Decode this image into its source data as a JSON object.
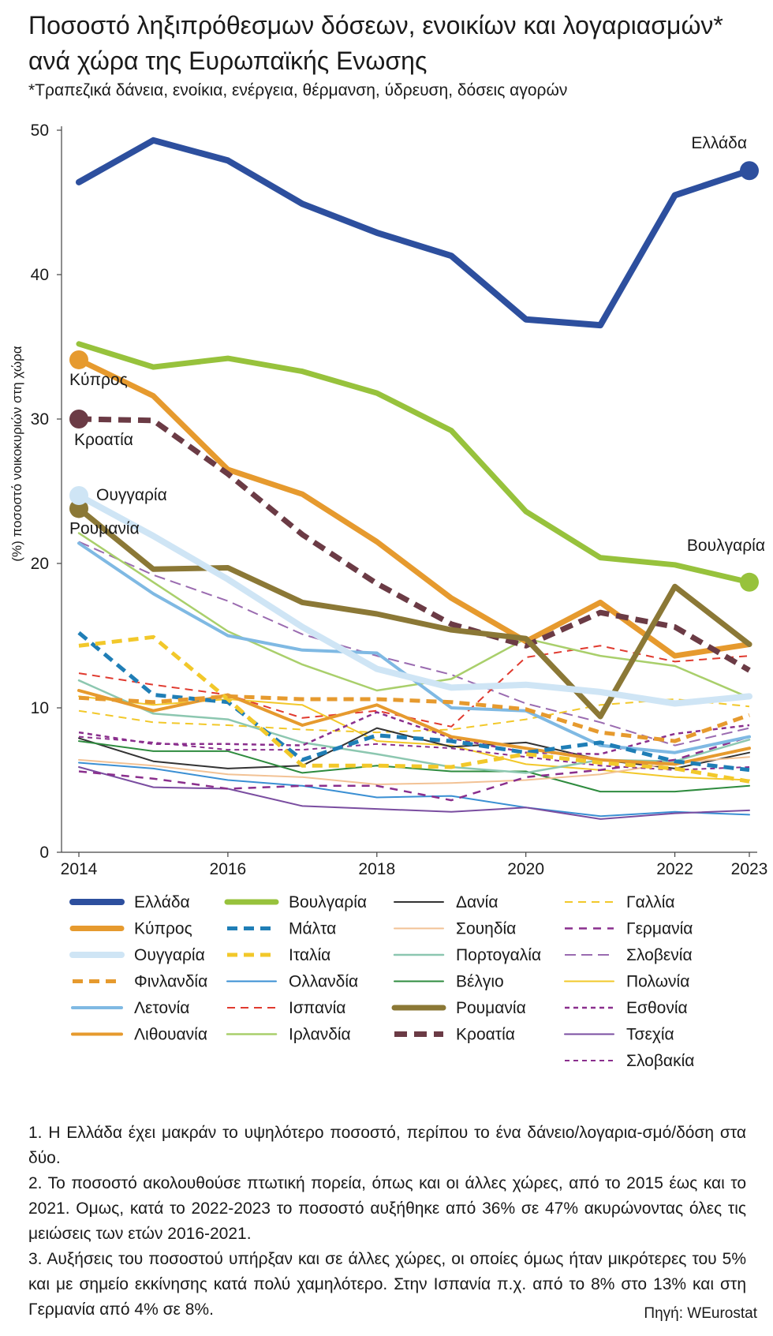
{
  "header": {
    "title": "Ποσοστό ληξιπρόθεσμων δόσεων, ενοικίων και λογαριασμών* ανά χώρα της Ευρωπαϊκής Ενωσης",
    "subtitle": "*Τραπεζικά δάνεια, ενοίκια, ενέργεια, θέρμανση, ύδρευση, δόσεις αγορών"
  },
  "chart_data": {
    "type": "line",
    "title": "Ποσοστό ληξιπρόθεσμων δόσεων, ενοικίων και λογαριασμών* ανά χώρα της Ευρωπαϊκής Ενωσης",
    "ylabel": "(%) ποσοστό νοικοκυριών στη χώρα",
    "xlabel": "",
    "x": [
      2014,
      2015,
      2016,
      2017,
      2018,
      2019,
      2020,
      2021,
      2022,
      2023
    ],
    "xticks": [
      "2014",
      "2016",
      "2018",
      "2020",
      "2022",
      "2023"
    ],
    "xtick_values": [
      2014,
      2016,
      2018,
      2020,
      2022,
      2023
    ],
    "yticks": [
      "0",
      "10",
      "20",
      "30",
      "40",
      "50"
    ],
    "ylim": [
      0,
      50
    ],
    "grid": false,
    "legend": "bottom",
    "series": [
      {
        "name": "Ελλάδα",
        "color": "#2d4f9e",
        "width": 8,
        "dash": "",
        "end_dot": true,
        "values": [
          46.4,
          49.3,
          47.9,
          44.9,
          42.9,
          41.3,
          36.9,
          36.5,
          45.5,
          47.2
        ]
      },
      {
        "name": "Βουλγαρία",
        "color": "#97c23c",
        "width": 7,
        "dash": "",
        "end_dot": true,
        "values": [
          35.2,
          33.6,
          34.2,
          33.3,
          31.8,
          29.2,
          23.6,
          20.4,
          19.9,
          18.7
        ]
      },
      {
        "name": "Κύπρος",
        "color": "#e69a2e",
        "width": 7,
        "dash": "",
        "start_dot": true,
        "values": [
          34.1,
          31.6,
          26.5,
          24.8,
          21.5,
          17.6,
          14.6,
          17.3,
          13.6,
          14.4
        ]
      },
      {
        "name": "Κροατία",
        "color": "#6b3b45",
        "width": 7,
        "dash": "16,9",
        "start_dot": true,
        "values": [
          30.0,
          29.9,
          26.2,
          22.0,
          18.6,
          15.8,
          14.3,
          16.6,
          15.6,
          12.6
        ]
      },
      {
        "name": "Ουγγαρία",
        "color": "#cfe5f5",
        "width": 8,
        "dash": "",
        "start_dot": true,
        "values": [
          24.7,
          21.9,
          18.9,
          15.6,
          12.7,
          11.4,
          11.6,
          11.1,
          10.3,
          10.8
        ]
      },
      {
        "name": "Ρουμανία",
        "color": "#8b7836",
        "width": 7,
        "dash": "",
        "start_dot": true,
        "values": [
          23.8,
          19.6,
          19.7,
          17.3,
          16.5,
          15.4,
          14.8,
          9.4,
          18.4,
          14.4
        ]
      },
      {
        "name": "Ιρλανδία",
        "color": "#a9cf6b",
        "width": 2.5,
        "dash": "",
        "values": [
          22.1,
          18.7,
          15.3,
          13.0,
          11.2,
          12.0,
          14.8,
          13.6,
          12.9,
          10.7
        ]
      },
      {
        "name": "Λετονία",
        "color": "#7fb9e3",
        "width": 4,
        "dash": "",
        "values": [
          21.4,
          17.9,
          15.0,
          14.0,
          13.8,
          10.0,
          9.8,
          7.4,
          6.9,
          8.0
        ]
      },
      {
        "name": "Σλοβενία",
        "color": "#9a6bb0",
        "width": 2,
        "dash": "14,7",
        "values": [
          21.5,
          19.2,
          17.4,
          15.1,
          13.6,
          12.3,
          10.3,
          9.0,
          7.4,
          8.6
        ]
      },
      {
        "name": "Μάλτα",
        "color": "#1f7eb6",
        "width": 5,
        "dash": "13,8",
        "values": [
          15.2,
          10.9,
          10.4,
          6.4,
          8.1,
          7.7,
          6.9,
          7.6,
          6.3,
          5.7
        ]
      },
      {
        "name": "Ιταλία",
        "color": "#f2c82a",
        "width": 5,
        "dash": "13,8",
        "values": [
          14.3,
          14.9,
          10.6,
          6.0,
          6.0,
          5.9,
          6.8,
          6.2,
          5.8,
          4.9
        ]
      },
      {
        "name": "Ισπανία",
        "color": "#e03a2f",
        "width": 2,
        "dash": "10,7",
        "values": [
          12.4,
          11.6,
          10.9,
          9.3,
          9.8,
          8.7,
          13.5,
          14.3,
          13.2,
          13.6
        ]
      },
      {
        "name": "Πορτογαλία",
        "color": "#8cc7b0",
        "width": 2.5,
        "dash": "",
        "values": [
          11.9,
          9.6,
          9.2,
          7.6,
          6.8,
          5.9,
          5.5,
          6.4,
          6.3,
          7.8
        ]
      },
      {
        "name": "Φινλανδία",
        "color": "#e69a2e",
        "width": 5,
        "dash": "13,8",
        "values": [
          10.7,
          10.4,
          10.8,
          10.6,
          10.6,
          10.4,
          9.9,
          8.3,
          7.7,
          9.5
        ]
      },
      {
        "name": "Λιθουανία",
        "color": "#e69a2e",
        "width": 4,
        "dash": "",
        "values": [
          11.2,
          9.8,
          10.9,
          8.8,
          10.2,
          8.0,
          7.2,
          6.4,
          6.1,
          7.2
        ]
      },
      {
        "name": "Γαλλία",
        "color": "#f2c82a",
        "width": 2,
        "dash": "10,7",
        "values": [
          9.8,
          9.0,
          8.8,
          8.5,
          8.3,
          8.5,
          9.2,
          10.2,
          10.6,
          10.1
        ]
      },
      {
        "name": "Εσθονία",
        "color": "#8a2f8d",
        "width": 2.5,
        "dash": "6,5",
        "values": [
          8.3,
          7.5,
          7.5,
          7.4,
          9.7,
          7.9,
          6.9,
          6.8,
          8.2,
          8.8
        ]
      },
      {
        "name": "Πολωνία",
        "color": "#f2c82a",
        "width": 2,
        "dash": "",
        "values": [
          10.8,
          10.2,
          10.6,
          10.2,
          7.7,
          7.4,
          6.1,
          5.7,
          5.2,
          5.0
        ]
      },
      {
        "name": "Δανία",
        "color": "#333333",
        "width": 2,
        "dash": "",
        "values": [
          7.9,
          6.3,
          5.8,
          6.0,
          8.6,
          7.3,
          7.6,
          6.4,
          5.8,
          6.9
        ]
      },
      {
        "name": "Βέλγιο",
        "color": "#2e8b3e",
        "width": 2,
        "dash": "",
        "values": [
          7.7,
          7.0,
          7.0,
          5.5,
          6.0,
          5.6,
          5.6,
          4.2,
          4.2,
          4.6
        ]
      },
      {
        "name": "Ολλανδία",
        "color": "#3a8fd3",
        "width": 2,
        "dash": "",
        "values": [
          6.2,
          5.8,
          5.0,
          4.6,
          3.8,
          3.9,
          3.1,
          2.5,
          2.8,
          2.6
        ]
      },
      {
        "name": "Σουηδία",
        "color": "#f2c295",
        "width": 2,
        "dash": "",
        "values": [
          6.4,
          6.0,
          5.4,
          5.2,
          4.7,
          4.8,
          5.0,
          5.4,
          6.2,
          6.6
        ]
      },
      {
        "name": "Γερμανία",
        "color": "#8a2f8d",
        "width": 2.5,
        "dash": "10,8",
        "values": [
          5.6,
          5.1,
          4.4,
          4.6,
          4.6,
          3.6,
          5.2,
          5.7,
          6.4,
          8.0
        ]
      },
      {
        "name": "Τσεχία",
        "color": "#7a4da0",
        "width": 2,
        "dash": "",
        "values": [
          5.9,
          4.5,
          4.4,
          3.2,
          3.0,
          2.8,
          3.1,
          2.3,
          2.7,
          2.9
        ]
      },
      {
        "name": "Σλοβακία",
        "color": "#8a2f8d",
        "width": 2,
        "dash": "6,5",
        "values": [
          8.0,
          7.6,
          7.1,
          7.1,
          7.5,
          7.2,
          6.6,
          6.0,
          5.7,
          5.9
        ]
      }
    ],
    "annotations": [
      {
        "text": "Ελλάδα",
        "series": "Ελλάδα"
      },
      {
        "text": "Βουλγαρία",
        "series": "Βουλγαρία"
      },
      {
        "text": "Κύπρος",
        "series": "Κύπρος"
      },
      {
        "text": "Κροατία",
        "series": "Κροατία"
      },
      {
        "text": "Ουγγαρία",
        "series": "Ουγγαρία"
      },
      {
        "text": "Ρουμανία",
        "series": "Ρουμανία"
      }
    ],
    "legend_columns": [
      [
        "Ελλάδα",
        "Κύπρος",
        "Ουγγαρία",
        "Φινλανδία",
        "Λετονία",
        "Λιθουανία"
      ],
      [
        "Βουλγαρία",
        "Μάλτα",
        "Ιταλία",
        "Ολλανδία",
        "Ισπανία",
        "Ιρλανδία"
      ],
      [
        "Δανία",
        "Σουηδία",
        "Πορτογαλία",
        "Βέλγιο",
        "Ρουμανία",
        "Κροατία"
      ],
      [
        "Γαλλία",
        "Γερμανία",
        "Σλοβενία",
        "Πολωνία",
        "Εσθονία",
        "Τσεχία",
        "Σλοβακία"
      ]
    ]
  },
  "footnotes": {
    "note1": "1. Η Ελλάδα έχει μακράν το υψηλότερο ποσοστό, περίπου το ένα δάνειο/λογαρια-σμό/δόση στα δύο.",
    "note2": "2. Το ποσοστό ακολουθούσε πτωτική πορεία, όπως και οι άλλες χώρες, από το 2015 έως και το 2021. Ομως, κατά το 2022-2023 το ποσοστό αυξήθηκε από 36% σε 47% ακυρώνοντας όλες τις μειώσεις των ετών 2016-2021.",
    "note3": "3. Αυξήσεις του ποσοστού υπήρξαν και σε άλλες χώρες, οι οποίες όμως ήταν μικρότερες του 5% και με σημείο εκκίνησης κατά πολύ χαμηλότερο. Στην Ισπανία π.χ. από το 8% στο 13% και στη Γερμανία από 4% σε 8%."
  },
  "source": "Πηγή: WEurostat"
}
